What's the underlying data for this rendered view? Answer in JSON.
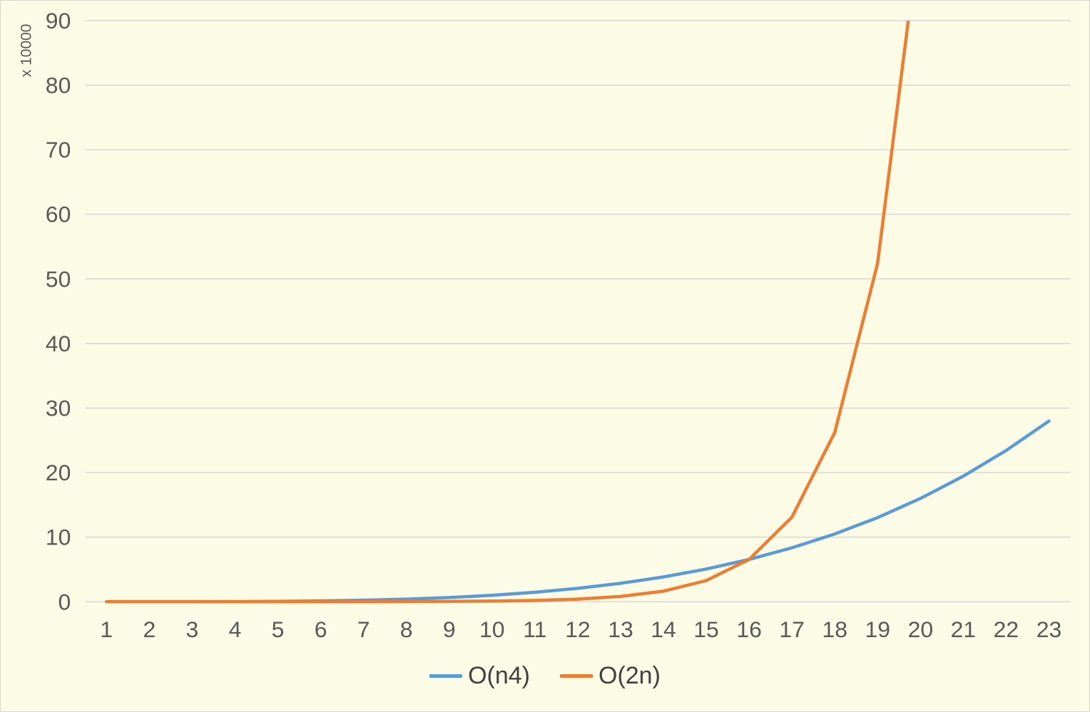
{
  "chart": {
    "background_color": "#FCFBE5",
    "border_color": "#D6D6CE",
    "grid_color": "#D9D9D9",
    "axis_text_color": "#595959",
    "legend_text_color": "#404040"
  },
  "chart_data": {
    "type": "line",
    "title": "",
    "xlabel": "",
    "ylabel": "x 10000",
    "x": [
      1,
      2,
      3,
      4,
      5,
      6,
      7,
      8,
      9,
      10,
      11,
      12,
      13,
      14,
      15,
      16,
      17,
      18,
      19,
      20,
      21,
      22,
      23
    ],
    "yticks": [
      0,
      10,
      20,
      30,
      40,
      50,
      60,
      70,
      80,
      90
    ],
    "ylim": [
      0,
      90
    ],
    "grid": "horizontal",
    "legend_position": "bottom",
    "series": [
      {
        "name": "O(n4)",
        "color": "#5B9BD5",
        "values": [
          0.0001,
          0.0016,
          0.0081,
          0.0256,
          0.0625,
          0.1296,
          0.2401,
          0.4096,
          0.6561,
          1.0,
          1.4641,
          2.0736,
          2.8561,
          3.8416,
          5.0625,
          6.5536,
          8.3521,
          10.4976,
          13.0321,
          16.0,
          19.4481,
          23.4256,
          27.9841
        ]
      },
      {
        "name": "O(2n)",
        "color": "#ED7D31",
        "values": [
          0.0002,
          0.0004,
          0.0008,
          0.0016,
          0.0032,
          0.0064,
          0.0128,
          0.0256,
          0.0512,
          0.1024,
          0.2048,
          0.4096,
          0.8192,
          1.6384,
          3.2768,
          6.5536,
          13.1072,
          26.2144,
          52.4288,
          104.8576,
          null,
          null,
          null
        ]
      }
    ]
  }
}
